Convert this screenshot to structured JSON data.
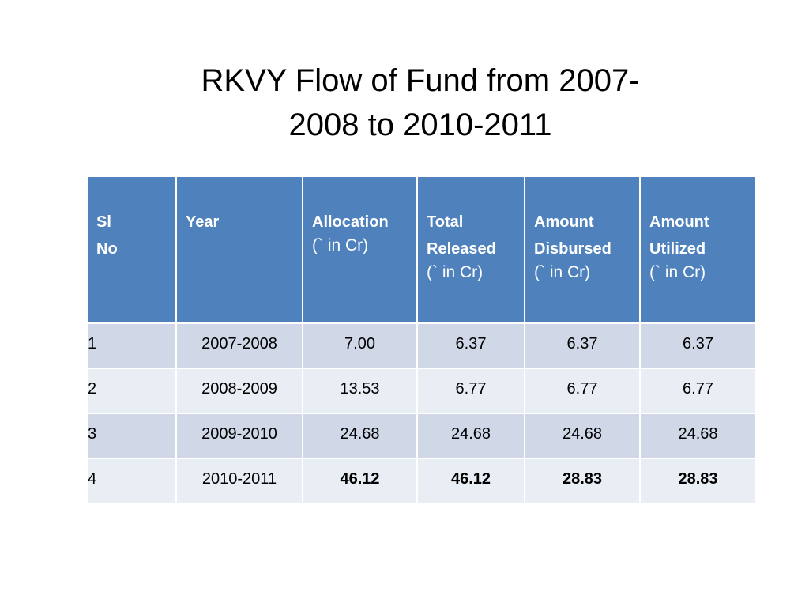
{
  "title": {
    "line1": "RKVY Flow of Fund from 2007-",
    "line2": "2008 to 2010-2011"
  },
  "table": {
    "headers": [
      {
        "lines": [
          "Sl",
          "No"
        ],
        "unit": ""
      },
      {
        "lines": [
          "Year"
        ],
        "unit": ""
      },
      {
        "lines": [
          "Allocation"
        ],
        "unit": "(` in Cr)"
      },
      {
        "lines": [
          "Total",
          "Released"
        ],
        "unit": "(` in Cr)"
      },
      {
        "lines": [
          "Amount",
          "Disbursed"
        ],
        "unit": "(` in Cr)"
      },
      {
        "lines": [
          "Amount",
          "Utilized"
        ],
        "unit": "(` in Cr)"
      }
    ],
    "rows": [
      {
        "sl": "1",
        "year": "2007-2008",
        "allocation": "7.00",
        "released": "6.37",
        "disbursed": "6.37",
        "utilized": "6.37"
      },
      {
        "sl": "2",
        "year": "2008-2009",
        "allocation": "13.53",
        "released": "6.77",
        "disbursed": "6.77",
        "utilized": "6.77"
      },
      {
        "sl": "3",
        "year": "2009-2010",
        "allocation": "24.68",
        "released": "24.68",
        "disbursed": "24.68",
        "utilized": "24.68"
      },
      {
        "sl": "4",
        "year": "2010-2011",
        "allocation": "46.12",
        "released": "46.12",
        "disbursed": "28.83",
        "utilized": "28.83"
      }
    ]
  },
  "colors": {
    "header_bg": "#4f81bd",
    "row_odd_bg": "#d0d8e8",
    "row_even_bg": "#e9edf4"
  }
}
